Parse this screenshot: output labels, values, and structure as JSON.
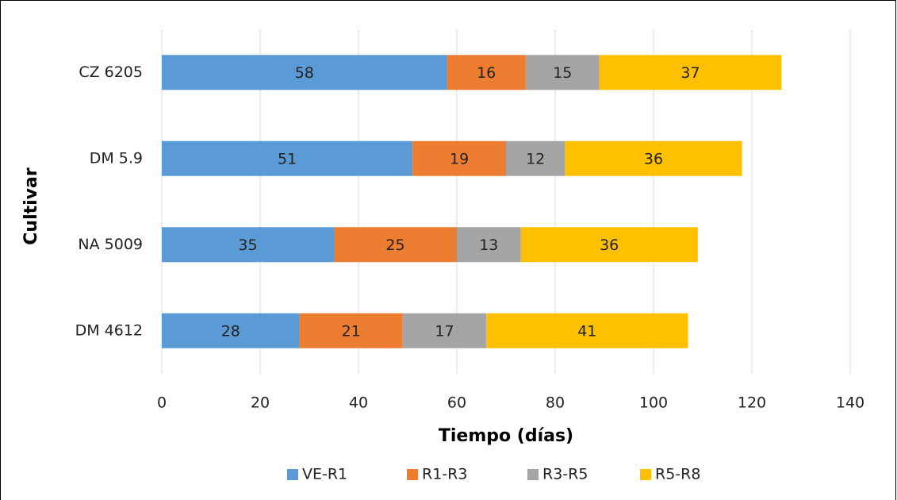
{
  "chart_data": {
    "type": "stacked-bar-horizontal",
    "x_label": "Tiempo (días)",
    "y_label": "Cultivar",
    "categories": [
      "CZ 6205",
      "DM 5.9",
      "NA 5009",
      "DM 4612"
    ],
    "series": [
      {
        "name": "VE-R1",
        "color": "#5b9bd5",
        "values": [
          58,
          51,
          35,
          28
        ]
      },
      {
        "name": "R1-R3",
        "color": "#ed7d31",
        "values": [
          16,
          19,
          25,
          21
        ]
      },
      {
        "name": "R3-R5",
        "color": "#a5a5a5",
        "values": [
          15,
          12,
          13,
          17
        ]
      },
      {
        "name": "R5-R8",
        "color": "#ffc000",
        "values": [
          37,
          36,
          36,
          41
        ]
      }
    ],
    "xlim": [
      0,
      140
    ],
    "xticks": [
      0,
      20,
      40,
      60,
      80,
      100,
      120,
      140
    ],
    "grid": true,
    "legend": "bottom"
  }
}
